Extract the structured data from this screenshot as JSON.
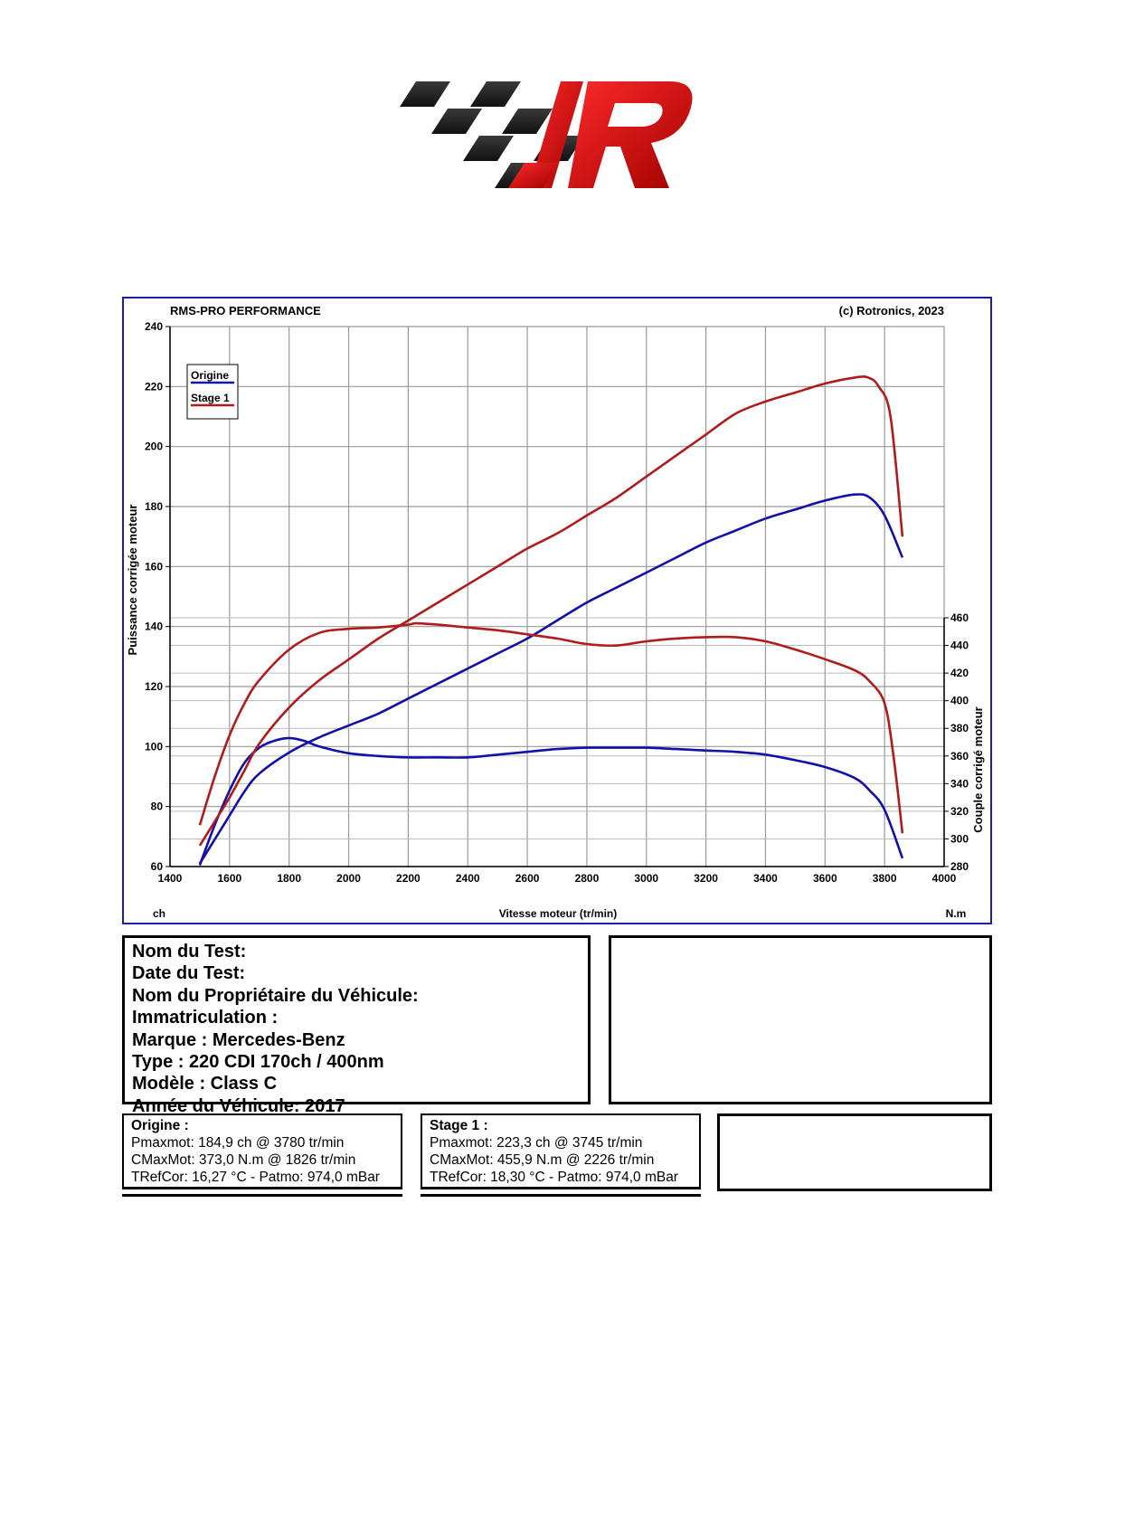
{
  "chart_data": {
    "type": "line",
    "title": "RMS-PRO PERFORMANCE",
    "copyright": "(c) Rotronics, 2023",
    "xlabel": "Vitesse moteur (tr/min)",
    "x_unit_left": "ch",
    "x_unit_right": "N.m",
    "ylabel_left": "Puissance corrigée moteur",
    "ylabel_right": "Couple corrigé moteur",
    "xlim": [
      1400,
      4000
    ],
    "ylim_left": [
      60,
      240
    ],
    "ylim_right": [
      280,
      460
    ],
    "x_ticks": [
      1400,
      1600,
      1800,
      2000,
      2200,
      2400,
      2600,
      2800,
      3000,
      3200,
      3400,
      3600,
      3800,
      4000
    ],
    "y_ticks_left": [
      60,
      80,
      100,
      120,
      140,
      160,
      180,
      200,
      220,
      240
    ],
    "y_ticks_right": [
      280,
      300,
      320,
      340,
      360,
      380,
      400,
      420,
      440,
      460
    ],
    "grid": true,
    "legend_position": "top-left",
    "series": [
      {
        "name": "Origine",
        "color": "#1111aa",
        "kind": "power",
        "axis": "left",
        "x": [
          1500,
          1550,
          1600,
          1650,
          1700,
          1800,
          1900,
          2000,
          2100,
          2200,
          2300,
          2400,
          2500,
          2600,
          2700,
          2800,
          2900,
          3000,
          3100,
          3200,
          3300,
          3400,
          3500,
          3600,
          3700,
          3750,
          3800,
          3860
        ],
        "y": [
          61,
          69,
          77,
          85,
          91,
          98,
          103,
          107,
          111,
          116,
          121,
          126,
          131,
          136,
          142,
          148,
          153,
          158,
          163,
          168,
          172,
          176,
          179,
          182,
          184,
          183,
          177,
          163
        ]
      },
      {
        "name": "Origine",
        "color": "#1111aa",
        "kind": "torque",
        "axis": "right",
        "x": [
          1500,
          1550,
          1600,
          1650,
          1700,
          1750,
          1800,
          1850,
          1900,
          2000,
          2100,
          2200,
          2300,
          2400,
          2500,
          2600,
          2700,
          2800,
          2900,
          3000,
          3100,
          3200,
          3300,
          3400,
          3500,
          3600,
          3700,
          3750,
          3800,
          3860
        ],
        "y": [
          281,
          310,
          335,
          355,
          366,
          371,
          373,
          371,
          367,
          362,
          360,
          359,
          359,
          359,
          361,
          363,
          365,
          366,
          366,
          366,
          365,
          364,
          363,
          361,
          357,
          352,
          344,
          335,
          321,
          286
        ]
      },
      {
        "name": "Stage 1",
        "color": "#b01c1c",
        "kind": "power",
        "axis": "left",
        "x": [
          1500,
          1550,
          1600,
          1650,
          1700,
          1800,
          1900,
          2000,
          2100,
          2200,
          2300,
          2400,
          2500,
          2600,
          2700,
          2800,
          2900,
          3000,
          3100,
          3200,
          3300,
          3400,
          3500,
          3600,
          3700,
          3745,
          3780,
          3820,
          3860
        ],
        "y": [
          67,
          75,
          83,
          92,
          101,
          113,
          122,
          129,
          136,
          142,
          148,
          154,
          160,
          166,
          171,
          177,
          183,
          190,
          197,
          204,
          211,
          215,
          218,
          221,
          223,
          223,
          220,
          210,
          170
        ]
      },
      {
        "name": "Stage 1",
        "color": "#b01c1c",
        "kind": "torque",
        "axis": "right",
        "x": [
          1500,
          1550,
          1600,
          1650,
          1700,
          1800,
          1900,
          2000,
          2100,
          2200,
          2226,
          2300,
          2400,
          2500,
          2600,
          2700,
          2800,
          2900,
          3000,
          3100,
          3200,
          3300,
          3400,
          3500,
          3600,
          3700,
          3750,
          3800,
          3830,
          3860
        ],
        "y": [
          310,
          345,
          375,
          398,
          415,
          437,
          449,
          452,
          453,
          455,
          456,
          455,
          453,
          451,
          448,
          445,
          441,
          440,
          443,
          445,
          446,
          446,
          443,
          437,
          430,
          422,
          414,
          398,
          360,
          304
        ]
      }
    ]
  },
  "test_info": {
    "nom_du_test": "Nom du Test:",
    "date_du_test": "Date du Test:",
    "proprietaire": "Nom du Propriétaire du Véhicule:",
    "immatriculation": "Immatriculation  :",
    "marque": "Marque  : Mercedes-Benz",
    "type": "Type  : 220 CDI 170ch / 400nm",
    "modele": "Modèle  : Class C",
    "annee": "Année du Véhicule: 2017"
  },
  "summary": {
    "origine": {
      "header": "Origine :",
      "pmax": "Pmaxmot: 184,9 ch @ 3780 tr/min",
      "cmax": "CMaxMot: 373,0 N.m @ 1826 tr/min",
      "tref": "TRefCor: 16,27 °C - Patmo: 974,0 mBar"
    },
    "stage1": {
      "header": "Stage 1 :",
      "pmax": "Pmaxmot: 223,3 ch @ 3745 tr/min",
      "cmax": "CMaxMot: 455,9 N.m @ 2226 tr/min",
      "tref": "TRefCor: 18,30 °C - Patmo: 974,0 mBar"
    }
  }
}
